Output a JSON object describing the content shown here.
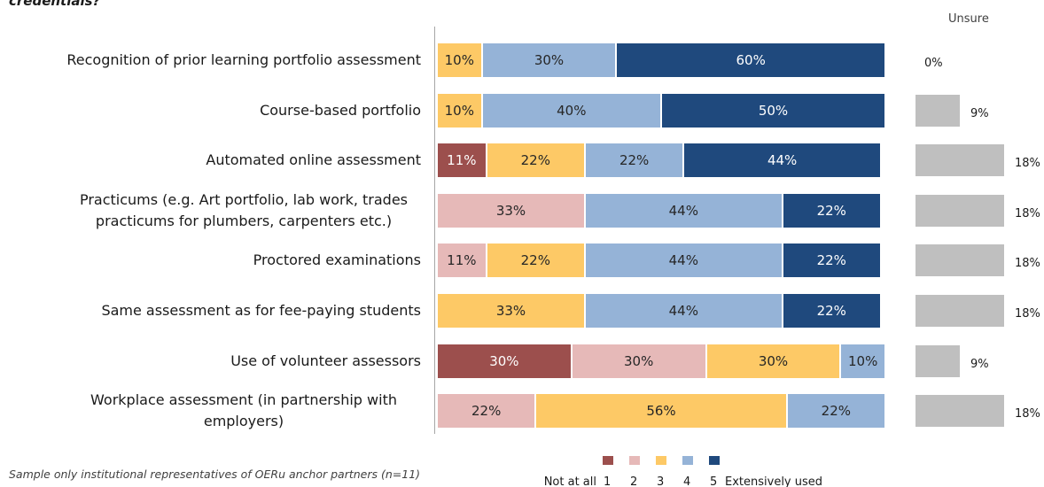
{
  "chart_data": {
    "type": "stacked_bar_horizontal",
    "title": "credentials?",
    "categories": [
      "Recognition of prior learning portfolio assessment",
      "Course-based portfolio",
      "Automated online assessment",
      "Practicums (e.g. Art portfolio, lab work, trades practicums for plumbers, carpenters etc.)",
      "Proctored examinations",
      "Same assessment as for fee-paying students",
      "Use of volunteer assessors",
      "Workplace assessment (in partnership with employers)"
    ],
    "xlim": [
      0,
      100
    ],
    "series": [
      {
        "name": "1",
        "color": "#9c4f4d",
        "text_color": "#ffffff",
        "values": [
          null,
          null,
          11,
          null,
          null,
          null,
          30,
          null
        ],
        "value_labels": [
          null,
          null,
          "11%",
          null,
          null,
          null,
          "30%",
          null
        ]
      },
      {
        "name": "2",
        "color": "#e6b9b8",
        "text_color": "#262626",
        "values": [
          null,
          null,
          null,
          33,
          11,
          null,
          30,
          22
        ],
        "value_labels": [
          null,
          null,
          null,
          "33%",
          "11%",
          null,
          "30%",
          "22%"
        ]
      },
      {
        "name": "3",
        "color": "#fdc966",
        "text_color": "#262626",
        "values": [
          10,
          10,
          22,
          null,
          22,
          33,
          30,
          56
        ],
        "value_labels": [
          "10%",
          "10%",
          "22%",
          null,
          "22%",
          "33%",
          "30%",
          "56%"
        ]
      },
      {
        "name": "4",
        "color": "#95b3d7",
        "text_color": "#262626",
        "values": [
          30,
          40,
          22,
          44,
          44,
          44,
          10,
          22
        ],
        "value_labels": [
          "30%",
          "40%",
          "22%",
          "44%",
          "44%",
          "44%",
          "10%",
          "22%"
        ]
      },
      {
        "name": "5",
        "color": "#1f497d",
        "text_color": "#ffffff",
        "values": [
          60,
          50,
          44,
          22,
          22,
          22,
          null,
          null
        ],
        "value_labels": [
          "60%",
          "50%",
          "44%",
          "22%",
          "22%",
          "22%",
          null,
          null
        ]
      }
    ],
    "unsure": {
      "title": "Unsure",
      "color": "#bfbfbf",
      "xlim": [
        0,
        18
      ],
      "values": [
        0,
        9,
        18,
        18,
        18,
        18,
        9,
        18
      ],
      "value_labels": [
        "0%",
        "9%",
        "18%",
        "18%",
        "18%",
        "18%",
        "9%",
        "18%"
      ]
    },
    "legend_low": "Not at all",
    "legend_high": "Extensively used",
    "footnote": "Sample only institutional representatives of OERu anchor partners (n=11)"
  }
}
